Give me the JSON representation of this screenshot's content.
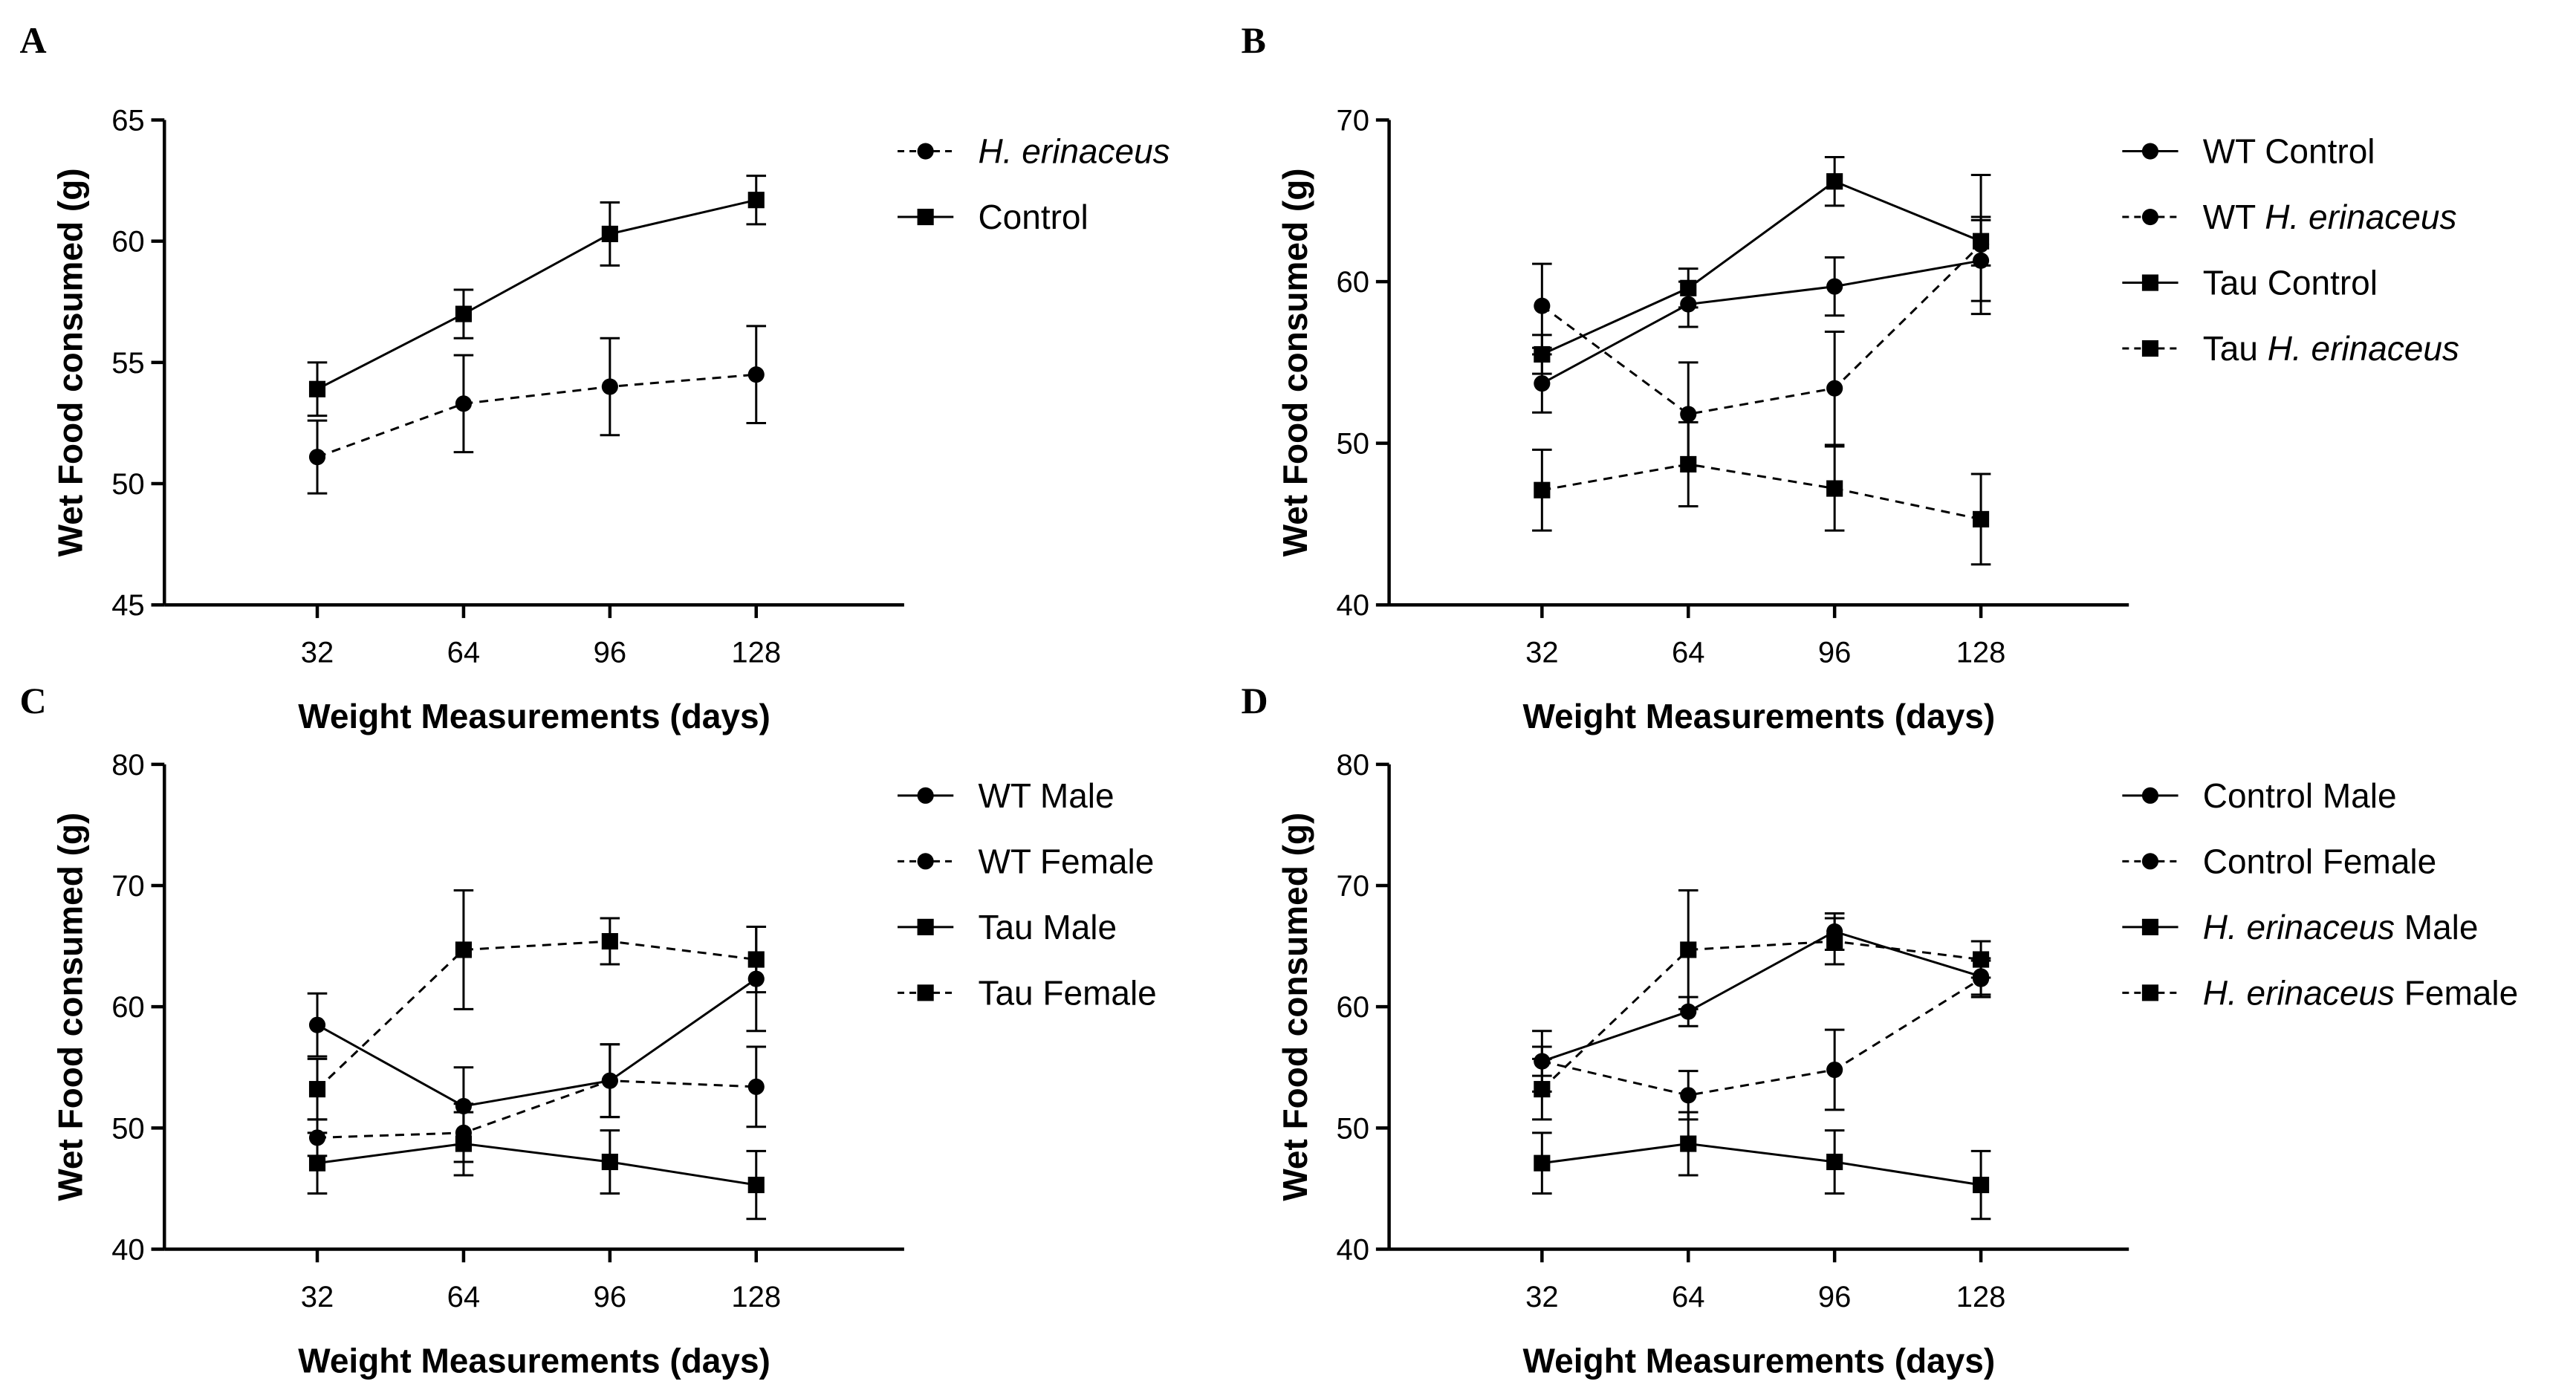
{
  "chart_data": [
    {
      "panel": "A",
      "type": "line",
      "xlabel": "Weight Measurements (days)",
      "ylabel": "Wet Food consumed  (g)",
      "x": [
        32,
        64,
        96,
        128
      ],
      "ylim": [
        45,
        65
      ],
      "yticks": [
        45,
        50,
        55,
        60,
        65
      ],
      "series": [
        {
          "name": "H. erinaceus",
          "legend_parts": [
            {
              "text": "H. erinaceus",
              "italic": true
            }
          ],
          "marker": "circle",
          "dashed": true,
          "values": [
            51.1,
            53.3,
            54.0,
            54.5
          ],
          "errors": [
            1.5,
            2.0,
            2.0,
            2.0
          ]
        },
        {
          "name": "Control",
          "legend_parts": [
            {
              "text": "Control",
              "italic": false
            }
          ],
          "marker": "square",
          "dashed": false,
          "values": [
            53.9,
            57.0,
            60.3,
            61.7
          ],
          "errors": [
            1.1,
            1.0,
            1.3,
            1.0
          ]
        }
      ]
    },
    {
      "panel": "B",
      "type": "line",
      "xlabel": "Weight Measurements (days)",
      "ylabel": "Wet Food consumed  (g)",
      "x": [
        32,
        64,
        96,
        128
      ],
      "ylim": [
        40,
        70
      ],
      "yticks": [
        40,
        50,
        60,
        70
      ],
      "series": [
        {
          "name": "WT Control",
          "legend_parts": [
            {
              "text": "WT Control",
              "italic": false
            }
          ],
          "marker": "circle",
          "dashed": false,
          "values": [
            53.7,
            58.6,
            59.7,
            61.3
          ],
          "errors": [
            1.8,
            1.4,
            1.8,
            2.5
          ]
        },
        {
          "name": "WT H. erinaceus",
          "legend_parts": [
            {
              "text": "WT ",
              "italic": false
            },
            {
              "text": "H. erinaceus",
              "italic": true
            }
          ],
          "marker": "circle",
          "dashed": true,
          "values": [
            58.5,
            51.8,
            53.4,
            62.3
          ],
          "errors": [
            2.6,
            3.2,
            3.5,
            4.3
          ]
        },
        {
          "name": "Tau Control",
          "legend_parts": [
            {
              "text": "Tau Control",
              "italic": false
            }
          ],
          "marker": "square",
          "dashed": false,
          "values": [
            55.5,
            59.6,
            66.2,
            62.5
          ],
          "errors": [
            1.2,
            1.2,
            1.5,
            1.5
          ]
        },
        {
          "name": "Tau H. erinaceus",
          "legend_parts": [
            {
              "text": "Tau ",
              "italic": false
            },
            {
              "text": "H. erinaceus",
              "italic": true
            }
          ],
          "marker": "square",
          "dashed": true,
          "values": [
            47.1,
            48.7,
            47.2,
            45.3
          ],
          "errors": [
            2.5,
            2.6,
            2.6,
            2.8
          ]
        }
      ]
    },
    {
      "panel": "C",
      "type": "line",
      "xlabel": "Weight Measurements (days)",
      "ylabel": "Wet Food consumed  (g)",
      "x": [
        32,
        64,
        96,
        128
      ],
      "ylim": [
        40,
        80
      ],
      "yticks": [
        40,
        50,
        60,
        70,
        80
      ],
      "series": [
        {
          "name": "WT Male",
          "legend_parts": [
            {
              "text": "WT Male",
              "italic": false
            }
          ],
          "marker": "circle",
          "dashed": false,
          "values": [
            58.5,
            51.8,
            53.9,
            62.3
          ],
          "errors": [
            2.6,
            3.2,
            3.0,
            4.3
          ]
        },
        {
          "name": "WT Female",
          "legend_parts": [
            {
              "text": "WT Female",
              "italic": false
            }
          ],
          "marker": "circle",
          "dashed": true,
          "values": [
            49.2,
            49.6,
            53.9,
            53.4
          ],
          "errors": [
            1.5,
            2.4,
            3.0,
            3.3
          ]
        },
        {
          "name": "Tau Male",
          "legend_parts": [
            {
              "text": "Tau Male",
              "italic": false
            }
          ],
          "marker": "square",
          "dashed": false,
          "values": [
            47.1,
            48.7,
            47.2,
            45.3
          ],
          "errors": [
            2.5,
            2.6,
            2.6,
            2.8
          ]
        },
        {
          "name": "Tau Female",
          "legend_parts": [
            {
              "text": "Tau Female",
              "italic": false
            }
          ],
          "marker": "square",
          "dashed": true,
          "values": [
            53.2,
            64.7,
            65.4,
            63.9
          ],
          "errors": [
            2.5,
            4.9,
            1.9,
            2.7
          ]
        }
      ]
    },
    {
      "panel": "D",
      "type": "line",
      "xlabel": "Weight Measurements (days)",
      "ylabel": "Wet Food consumed  (g)",
      "x": [
        32,
        64,
        96,
        128
      ],
      "ylim": [
        40,
        80
      ],
      "yticks": [
        40,
        50,
        60,
        70,
        80
      ],
      "series": [
        {
          "name": "Control Male",
          "legend_parts": [
            {
              "text": "Control Male",
              "italic": false
            }
          ],
          "marker": "circle",
          "dashed": false,
          "values": [
            55.5,
            59.6,
            66.2,
            62.5
          ],
          "errors": [
            1.2,
            1.2,
            1.5,
            1.5
          ]
        },
        {
          "name": "Control Female",
          "legend_parts": [
            {
              "text": "Control Female",
              "italic": false
            }
          ],
          "marker": "circle",
          "dashed": true,
          "values": [
            55.5,
            52.7,
            54.8,
            62.3
          ],
          "errors": [
            2.5,
            2.0,
            3.3,
            1.5
          ]
        },
        {
          "name": "H. erinaceus Male",
          "legend_parts": [
            {
              "text": "H. erinaceus",
              "italic": true
            },
            {
              "text": " Male",
              "italic": false
            }
          ],
          "marker": "square",
          "dashed": false,
          "values": [
            47.1,
            48.7,
            47.2,
            45.3
          ],
          "errors": [
            2.5,
            2.6,
            2.6,
            2.8
          ]
        },
        {
          "name": "H. erinaceus Female",
          "legend_parts": [
            {
              "text": "H. erinaceus",
              "italic": true
            },
            {
              "text": " Female",
              "italic": false
            }
          ],
          "marker": "square",
          "dashed": true,
          "values": [
            53.2,
            64.7,
            65.4,
            63.9
          ],
          "errors": [
            2.5,
            4.9,
            1.9,
            1.5
          ]
        }
      ]
    }
  ]
}
